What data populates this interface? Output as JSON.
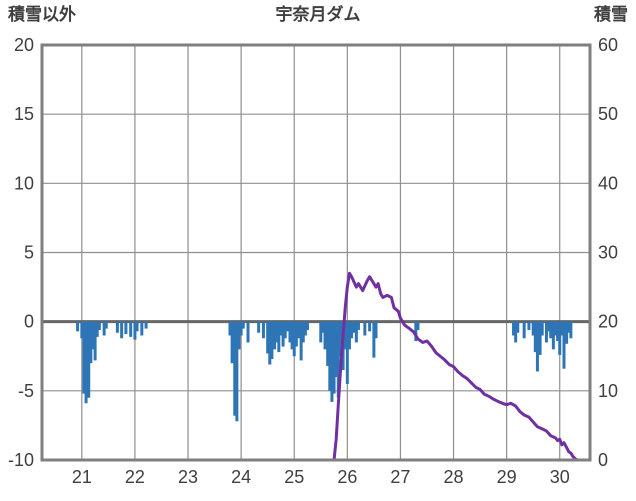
{
  "title": "宇奈月ダム",
  "left_axis_label": "積雪以外",
  "right_axis_label": "積雪",
  "colors": {
    "background": "#FFFFFF",
    "bar": "#2E75B6",
    "line": "#7030A0",
    "grid": "#8F8F8F",
    "border": "#7F7F7F",
    "zero": "#666666",
    "text": "#3F3F3F"
  },
  "chart_data": {
    "type": "combo",
    "title": "宇奈月ダム",
    "grid": true,
    "legend": "none",
    "x_axis": {
      "label": "",
      "min": 20.25,
      "max": 30.57,
      "ticks": [
        21,
        22,
        23,
        24,
        25,
        26,
        27,
        28,
        29,
        30
      ]
    },
    "left_axis": {
      "label": "積雪以外",
      "min": -10,
      "max": 20,
      "ticks": [
        20,
        15,
        10,
        5,
        0,
        -5,
        -10
      ]
    },
    "right_axis": {
      "label": "積雪",
      "min": 0,
      "max": 60,
      "ticks": [
        60,
        50,
        40,
        30,
        20,
        10,
        0
      ]
    },
    "series": [
      {
        "name": "積雪以外",
        "type": "bar",
        "axis": "left",
        "color": "#2E75B6",
        "points": [
          [
            20.92,
            -0.7
          ],
          [
            21.0,
            -1.2
          ],
          [
            21.04,
            -5.2
          ],
          [
            21.08,
            -5.9
          ],
          [
            21.13,
            -5.5
          ],
          [
            21.17,
            -3.0
          ],
          [
            21.21,
            -2.0
          ],
          [
            21.25,
            -2.8
          ],
          [
            21.29,
            -1.1
          ],
          [
            21.33,
            -0.6
          ],
          [
            21.42,
            -1.0
          ],
          [
            21.46,
            -0.5
          ],
          [
            21.67,
            -0.8
          ],
          [
            21.75,
            -1.2
          ],
          [
            21.83,
            -0.9
          ],
          [
            21.92,
            -1.1
          ],
          [
            22.0,
            -1.3
          ],
          [
            22.04,
            -0.7
          ],
          [
            22.13,
            -1.0
          ],
          [
            22.21,
            -0.5
          ],
          [
            23.79,
            -1.0
          ],
          [
            23.83,
            -3.0
          ],
          [
            23.88,
            -6.8
          ],
          [
            23.92,
            -7.2
          ],
          [
            23.96,
            -2.0
          ],
          [
            24.0,
            -1.0
          ],
          [
            24.04,
            -0.5
          ],
          [
            24.13,
            -1.5
          ],
          [
            24.33,
            -0.8
          ],
          [
            24.42,
            -1.2
          ],
          [
            24.5,
            -2.3
          ],
          [
            24.54,
            -3.1
          ],
          [
            24.58,
            -2.7
          ],
          [
            24.63,
            -2.0
          ],
          [
            24.67,
            -1.5
          ],
          [
            24.71,
            -2.2
          ],
          [
            24.75,
            -1.0
          ],
          [
            24.79,
            -1.8
          ],
          [
            24.83,
            -1.2
          ],
          [
            24.88,
            -0.7
          ],
          [
            24.92,
            -1.5
          ],
          [
            24.96,
            -2.0
          ],
          [
            25.0,
            -2.5
          ],
          [
            25.04,
            -1.8
          ],
          [
            25.08,
            -1.2
          ],
          [
            25.13,
            -2.8
          ],
          [
            25.17,
            -1.5
          ],
          [
            25.21,
            -1.0
          ],
          [
            25.25,
            -0.6
          ],
          [
            25.5,
            -1.5
          ],
          [
            25.54,
            -0.8
          ],
          [
            25.58,
            -2.0
          ],
          [
            25.63,
            -3.2
          ],
          [
            25.67,
            -5.0
          ],
          [
            25.71,
            -5.8
          ],
          [
            25.75,
            -5.2
          ],
          [
            25.79,
            -4.0
          ],
          [
            25.83,
            -5.5
          ],
          [
            25.88,
            -2.5
          ],
          [
            25.92,
            -3.5
          ],
          [
            25.96,
            -2.0
          ],
          [
            26.0,
            -4.5
          ],
          [
            26.04,
            -2.0
          ],
          [
            26.08,
            -1.2
          ],
          [
            26.13,
            -0.8
          ],
          [
            26.17,
            -1.5
          ],
          [
            26.21,
            -0.6
          ],
          [
            26.33,
            -1.0
          ],
          [
            26.42,
            -0.7
          ],
          [
            26.5,
            -2.6
          ],
          [
            26.54,
            -1.2
          ],
          [
            27.29,
            -1.4
          ],
          [
            27.33,
            -0.6
          ],
          [
            29.13,
            -1.0
          ],
          [
            29.17,
            -1.5
          ],
          [
            29.21,
            -0.8
          ],
          [
            29.33,
            -1.2
          ],
          [
            29.42,
            -0.6
          ],
          [
            29.5,
            -1.0
          ],
          [
            29.54,
            -2.2
          ],
          [
            29.58,
            -3.6
          ],
          [
            29.63,
            -2.4
          ],
          [
            29.67,
            -1.0
          ],
          [
            29.75,
            -1.5
          ],
          [
            29.79,
            -0.7
          ],
          [
            29.83,
            -1.2
          ],
          [
            29.88,
            -2.0
          ],
          [
            29.92,
            -1.0
          ],
          [
            29.96,
            -1.4
          ],
          [
            30.0,
            -2.4
          ],
          [
            30.04,
            -1.0
          ],
          [
            30.08,
            -3.4
          ],
          [
            30.13,
            -1.6
          ],
          [
            30.17,
            -0.8
          ],
          [
            30.21,
            -1.2
          ]
        ]
      },
      {
        "name": "積雪",
        "type": "line",
        "axis": "right",
        "color": "#7030A0",
        "points": [
          [
            25.6,
            0
          ],
          [
            25.75,
            0
          ],
          [
            25.79,
            3
          ],
          [
            25.83,
            8
          ],
          [
            25.88,
            14
          ],
          [
            25.92,
            18
          ],
          [
            25.96,
            22
          ],
          [
            26.0,
            25
          ],
          [
            26.04,
            27
          ],
          [
            26.08,
            26.5
          ],
          [
            26.17,
            25
          ],
          [
            26.21,
            25.5
          ],
          [
            26.29,
            24.5
          ],
          [
            26.38,
            26
          ],
          [
            26.42,
            26.5
          ],
          [
            26.46,
            26
          ],
          [
            26.54,
            25
          ],
          [
            26.58,
            25.5
          ],
          [
            26.63,
            24
          ],
          [
            26.67,
            23.5
          ],
          [
            26.75,
            23.8
          ],
          [
            26.83,
            23.5
          ],
          [
            26.88,
            22
          ],
          [
            26.96,
            21.5
          ],
          [
            27.0,
            20.5
          ],
          [
            27.08,
            19.5
          ],
          [
            27.17,
            19
          ],
          [
            27.25,
            18.5
          ],
          [
            27.33,
            17.5
          ],
          [
            27.42,
            17
          ],
          [
            27.5,
            17.2
          ],
          [
            27.58,
            16.5
          ],
          [
            27.67,
            15.5
          ],
          [
            27.75,
            15
          ],
          [
            27.83,
            14.5
          ],
          [
            27.92,
            13.8
          ],
          [
            28.0,
            13.5
          ],
          [
            28.08,
            12.8
          ],
          [
            28.17,
            12.2
          ],
          [
            28.25,
            11.8
          ],
          [
            28.33,
            11.2
          ],
          [
            28.42,
            10.5
          ],
          [
            28.5,
            10.2
          ],
          [
            28.58,
            9.5
          ],
          [
            28.67,
            9.2
          ],
          [
            28.75,
            8.8
          ],
          [
            28.83,
            8.5
          ],
          [
            28.92,
            8.2
          ],
          [
            29.0,
            8.0
          ],
          [
            29.08,
            8.2
          ],
          [
            29.17,
            7.8
          ],
          [
            29.25,
            7.0
          ],
          [
            29.33,
            6.5
          ],
          [
            29.42,
            6.2
          ],
          [
            29.5,
            5.5
          ],
          [
            29.58,
            4.8
          ],
          [
            29.67,
            4.5
          ],
          [
            29.75,
            4.2
          ],
          [
            29.83,
            3.5
          ],
          [
            29.92,
            3.2
          ],
          [
            29.96,
            2.8
          ],
          [
            30.0,
            3.0
          ],
          [
            30.04,
            2.2
          ],
          [
            30.08,
            2.5
          ],
          [
            30.13,
            1.8
          ],
          [
            30.17,
            1.2
          ],
          [
            30.21,
            1.0
          ],
          [
            30.25,
            0.5
          ],
          [
            30.29,
            0.2
          ],
          [
            30.33,
            0
          ],
          [
            30.5,
            0
          ]
        ]
      }
    ]
  }
}
